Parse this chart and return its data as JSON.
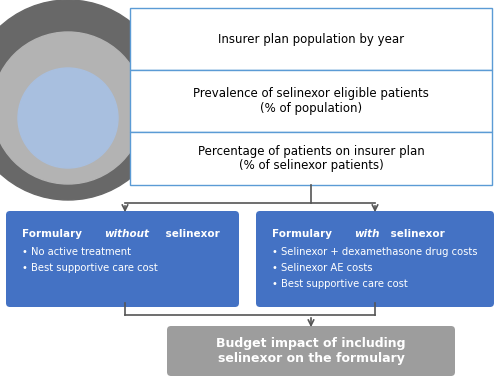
{
  "bg_color": "#ffffff",
  "circle_colors": [
    "#686868",
    "#b3b3b3",
    "#a8bfdf"
  ],
  "box1_color": "#ffffff",
  "box1_border": "#5b9bd5",
  "box2_color": "#4472c4",
  "box3_color": "#9d9d9d",
  "box1_text1": "Insurer plan population by year",
  "box1_text2": "Prevalence of selinexor eligible patients\n(% of population)",
  "box1_text3": "Percentage of patients on insurer plan\n(% of selinexor patients)",
  "box2a_bullets": [
    "No active treatment",
    "Best supportive care cost"
  ],
  "box2b_bullets": [
    "Selinexor + dexamethasone drug costs",
    "Selinexor AE costs",
    "Best supportive care cost"
  ],
  "box3_text": "Budget impact of including\nselinexor on the formulary",
  "arrow_color": "#555555",
  "line_color": "#555555"
}
